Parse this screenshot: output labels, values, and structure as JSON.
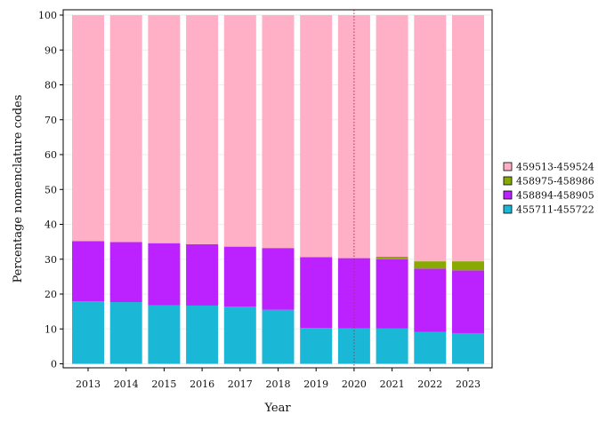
{
  "chart_data": {
    "type": "bar",
    "stacked": true,
    "title": "",
    "xlabel": "Year",
    "ylabel": "Percentage nomenclature codes",
    "ylim": [
      0,
      100
    ],
    "yticks": [
      0,
      10,
      20,
      30,
      40,
      50,
      60,
      70,
      80,
      90,
      100
    ],
    "categories": [
      "2013",
      "2014",
      "2015",
      "2016",
      "2017",
      "2018",
      "2019",
      "2020",
      "2021",
      "2022",
      "2023"
    ],
    "reference_line": {
      "x": "2020",
      "style": "dotted",
      "color": "#b03050"
    },
    "legend_position": "right",
    "series": [
      {
        "name": "455711-455722",
        "color": "#1ab8d6",
        "values": [
          17.9,
          17.7,
          16.8,
          16.7,
          16.4,
          15.5,
          10.3,
          10.2,
          10.1,
          9.1,
          8.8
        ]
      },
      {
        "name": "458894-458905",
        "color": "#bb22ff",
        "values": [
          17.3,
          17.2,
          17.8,
          17.6,
          17.2,
          17.7,
          20.3,
          20.1,
          19.9,
          18.2,
          18.0
        ]
      },
      {
        "name": "458975-458986",
        "color": "#88aa00",
        "values": [
          0,
          0,
          0,
          0,
          0,
          0,
          0,
          0,
          0.7,
          2.1,
          2.6
        ]
      },
      {
        "name": "459513-459524",
        "color": "#ffafc6",
        "values": [
          64.8,
          65.1,
          65.4,
          65.7,
          66.4,
          66.8,
          69.4,
          69.7,
          69.3,
          70.6,
          70.6
        ]
      }
    ]
  }
}
